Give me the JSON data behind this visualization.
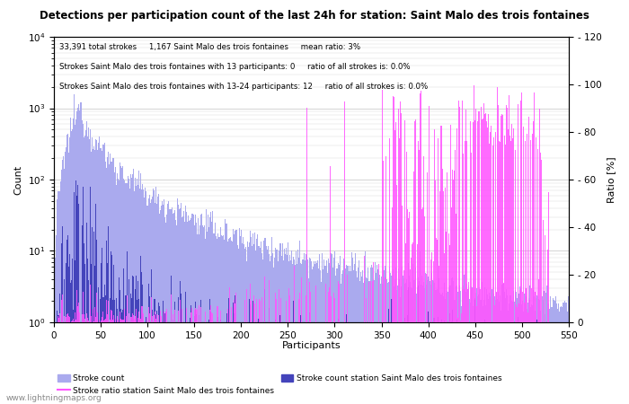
{
  "title": "Detections per participation count of the last 24h for station: Saint Malo des trois fontaines",
  "annotation_lines": [
    "33,391 total strokes     1,167 Saint Malo des trois fontaines     mean ratio: 3%",
    "Strokes Saint Malo des trois fontaines with 13 participants: 0     ratio of all strokes is: 0.0%",
    "Strokes Saint Malo des trois fontaines with 13-24 participants: 12     ratio of all strokes is: 0.0%"
  ],
  "xlabel": "Participants",
  "ylabel_left": "Count",
  "ylabel_right": "Ratio [%]",
  "xlim": [
    0,
    550
  ],
  "ylim_right": [
    0,
    120
  ],
  "right_yticks": [
    0,
    20,
    40,
    60,
    80,
    100,
    120
  ],
  "color_total": "#aaaaee",
  "color_station": "#4444bb",
  "color_ratio": "#ff55ff",
  "watermark": "www.lightningmaps.org",
  "bg_color": "#ffffff",
  "grid_color": "#999999"
}
